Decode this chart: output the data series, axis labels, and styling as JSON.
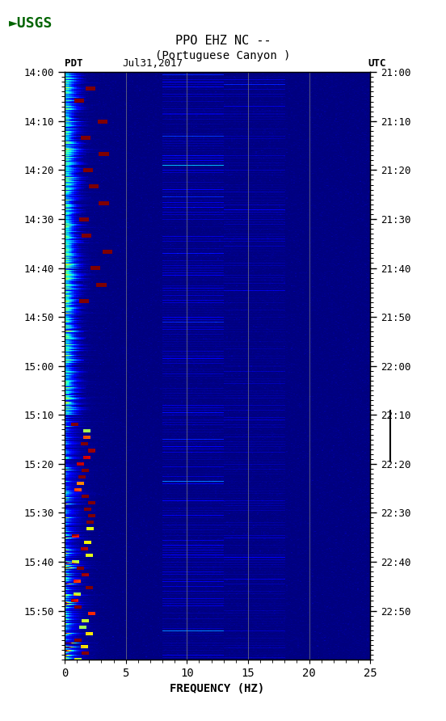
{
  "title_line1": "PPO EHZ NC --",
  "title_line2": "(Portuguese Canyon )",
  "label_left": "PDT",
  "label_date": "Jul31,2017",
  "label_right": "UTC",
  "xlabel": "FREQUENCY (HZ)",
  "freq_min": 0,
  "freq_max": 25,
  "pdt_ticks": [
    "14:00",
    "14:10",
    "14:20",
    "14:30",
    "14:40",
    "14:50",
    "15:00",
    "15:10",
    "15:20",
    "15:30",
    "15:40",
    "15:50"
  ],
  "utc_ticks": [
    "21:00",
    "21:10",
    "21:20",
    "21:30",
    "21:40",
    "21:50",
    "22:00",
    "22:10",
    "22:20",
    "22:30",
    "22:40",
    "22:50"
  ],
  "freq_ticks": [
    0,
    5,
    10,
    15,
    20,
    25
  ],
  "grid_freqs": [
    5,
    10,
    15,
    20
  ],
  "colormap": "jet",
  "figsize": [
    5.52,
    8.92
  ],
  "dpi": 100
}
